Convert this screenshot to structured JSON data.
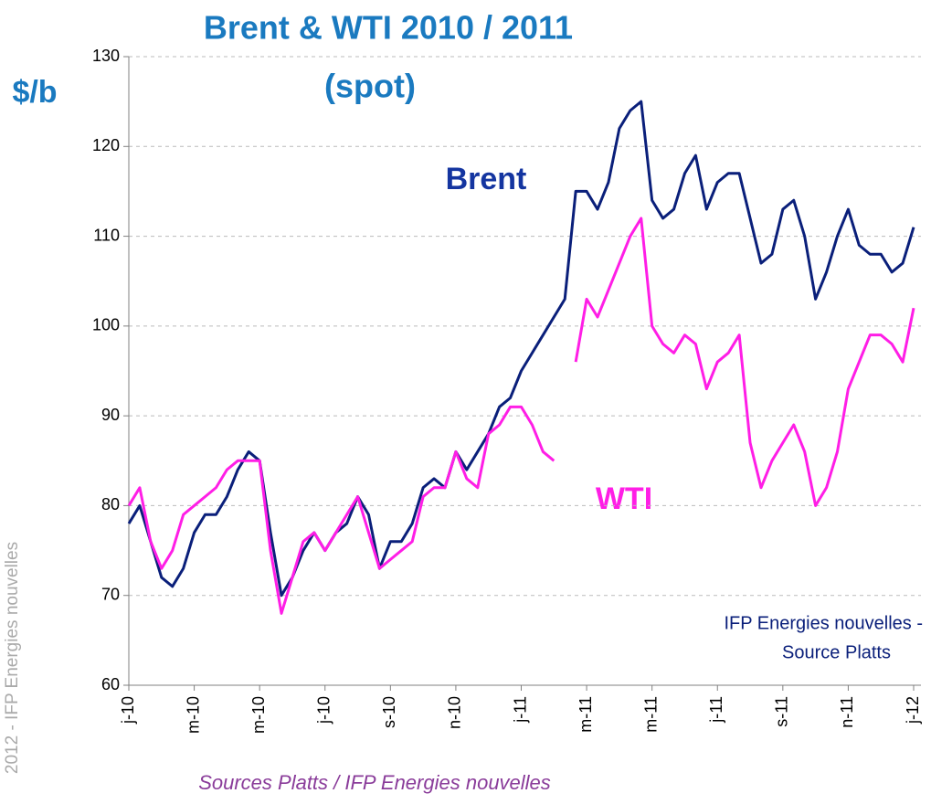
{
  "chart_data": {
    "type": "line",
    "title": "Brent & WTI 2010 / 2011",
    "subtitle": "(spot)",
    "y_axis_label": "$/b",
    "annotations": [
      "IFP Energies nouvelles -",
      "Source Platts"
    ],
    "source": "Sources Platts /  IFP Energies nouvelles",
    "side_note": "2012 - IFP Energies nouvelles",
    "categories": [
      "j-10",
      null,
      null,
      null,
      null,
      null,
      "m-10",
      null,
      null,
      null,
      null,
      null,
      "m-10",
      null,
      null,
      null,
      null,
      null,
      "j-10",
      null,
      null,
      null,
      null,
      null,
      "s-10",
      null,
      null,
      null,
      null,
      null,
      "n-10",
      null,
      null,
      null,
      null,
      null,
      "j-11",
      null,
      null,
      null,
      null,
      null,
      "m-11",
      null,
      null,
      null,
      null,
      null,
      "m-11",
      null,
      null,
      null,
      null,
      null,
      "j-11",
      null,
      null,
      null,
      null,
      null,
      "s-11",
      null,
      null,
      null,
      null,
      null,
      "n-11",
      null,
      null,
      null,
      null,
      null,
      "j-12"
    ],
    "series": [
      {
        "name": "Brent",
        "color": "#0a1f7a",
        "values": [
          78,
          80,
          76,
          72,
          71,
          73,
          77,
          79,
          79,
          81,
          84,
          86,
          85,
          77,
          70,
          72,
          75,
          77,
          75,
          77,
          78,
          81,
          79,
          73,
          76,
          76,
          78,
          82,
          83,
          82,
          86,
          84,
          86,
          88,
          91,
          92,
          95,
          97,
          99,
          101,
          103,
          115,
          115,
          113,
          116,
          122,
          124,
          125,
          114,
          112,
          113,
          117,
          119,
          113,
          116,
          117,
          117,
          112,
          107,
          108,
          113,
          114,
          110,
          103,
          106,
          110,
          113,
          109,
          108,
          108,
          106,
          107,
          111
        ]
      },
      {
        "name": "WTI",
        "color": "#ff1ee6",
        "values": [
          80,
          82,
          76,
          73,
          75,
          79,
          80,
          81,
          82,
          84,
          85,
          85,
          85,
          75,
          68,
          72,
          76,
          77,
          75,
          77,
          79,
          81,
          77,
          73,
          74,
          75,
          76,
          81,
          82,
          82,
          86,
          83,
          82,
          88,
          89,
          91,
          91,
          89,
          86,
          85,
          null,
          96,
          103,
          101,
          104,
          107,
          110,
          112,
          100,
          98,
          97,
          99,
          98,
          93,
          96,
          97,
          99,
          87,
          82,
          85,
          87,
          89,
          86,
          80,
          82,
          86,
          93,
          96,
          99,
          99,
          98,
          96,
          102
        ]
      }
    ],
    "ylim": [
      60,
      130
    ],
    "yticks": [
      60,
      70,
      80,
      90,
      100,
      110,
      120,
      130
    ],
    "grid": true
  }
}
